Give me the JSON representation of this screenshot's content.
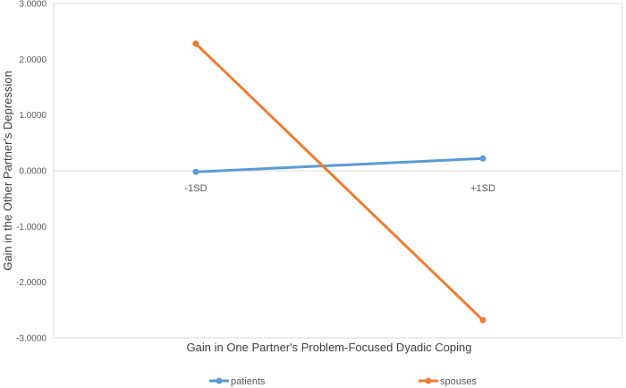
{
  "chart_data": {
    "type": "line",
    "categories": [
      "-1SD",
      "+1SD"
    ],
    "series": [
      {
        "name": "patients",
        "values": [
          -0.02,
          0.22
        ],
        "color": "#5B9BD5"
      },
      {
        "name": "spouses",
        "values": [
          2.28,
          -2.68
        ],
        "color": "#ED7D31"
      }
    ],
    "xlabel": "Gain in One Partner's Problem-Focused Dyadic Coping",
    "ylabel": "Gain in the Other Partner's Depression",
    "ylim": [
      -3,
      3
    ],
    "yticks": [
      "3.0000",
      "2.0000",
      "1.0000",
      "0.0000",
      "-1.0000",
      "-2.0000",
      "-3.0000"
    ],
    "grid": false,
    "legend": "bottom"
  }
}
